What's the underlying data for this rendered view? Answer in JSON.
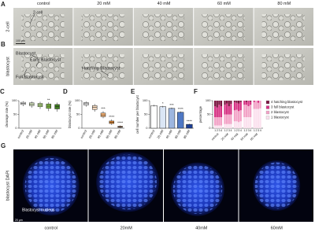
{
  "figure": {
    "A": {
      "label": "A",
      "row_label": "2-cell",
      "columns": [
        "control",
        "20 mM",
        "40 mM",
        "60 mM",
        "80 mM"
      ],
      "annotation": "2-cell",
      "scale_bar": "100 μm"
    },
    "B": {
      "label": "B",
      "row_label": "blastocyst",
      "annotations": [
        "Blastocyst",
        "Early Blastocyst",
        "Full Blastocyst",
        "Hatching Blastocyst"
      ]
    },
    "G": {
      "label": "G",
      "row_label": "blastocyst DAPI",
      "columns": [
        "control",
        "20mM",
        "40mM",
        "60mM"
      ],
      "annotation": "Blastocyst nucleus",
      "scale_bar": "20 μm"
    }
  },
  "chart_data": [
    {
      "type": "box",
      "label": "C",
      "ylabel": "cleavage rate (%)",
      "categories": [
        "control",
        "20 mM",
        "40 mM",
        "60 mM",
        "80 mM"
      ],
      "colors": [
        "#ffffff",
        "#dff0c8",
        "#b5dc86",
        "#7cb342",
        "#3e7d1e"
      ],
      "boxes": [
        {
          "min": 80,
          "q1": 86,
          "median": 90,
          "q3": 94,
          "max": 98
        },
        {
          "min": 74,
          "q1": 82,
          "median": 87,
          "q3": 92,
          "max": 97
        },
        {
          "min": 70,
          "q1": 78,
          "median": 84,
          "q3": 90,
          "max": 96
        },
        {
          "min": 62,
          "q1": 72,
          "median": 80,
          "q3": 88,
          "max": 94
        },
        {
          "min": 60,
          "q1": 70,
          "median": 78,
          "q3": 86,
          "max": 93
        }
      ],
      "significance": [
        null,
        null,
        null,
        "**",
        null
      ],
      "ylim": [
        0,
        100
      ],
      "yticks": [
        0,
        50,
        100
      ]
    },
    {
      "type": "box",
      "label": "D",
      "ylabel": "blastocyst rate (%)",
      "categories": [
        "control",
        "20 mM",
        "40 mM",
        "60 mM",
        "80 mM"
      ],
      "colors": [
        "#ffffff",
        "#fde0c4",
        "#f8b271",
        "#ee8a2b",
        "#c55a0e"
      ],
      "boxes": [
        {
          "min": 78,
          "q1": 84,
          "median": 89,
          "q3": 93,
          "max": 97
        },
        {
          "min": 60,
          "q1": 68,
          "median": 75,
          "q3": 82,
          "max": 88
        },
        {
          "min": 36,
          "q1": 42,
          "median": 48,
          "q3": 55,
          "max": 62
        },
        {
          "min": 12,
          "q1": 17,
          "median": 21,
          "q3": 26,
          "max": 32
        },
        {
          "min": 1,
          "q1": 3,
          "median": 5,
          "q3": 7,
          "max": 10
        }
      ],
      "significance": [
        null,
        null,
        "***",
        "****",
        "****"
      ],
      "ylim": [
        0,
        100
      ],
      "yticks": [
        0,
        50,
        100
      ]
    },
    {
      "type": "bar",
      "label": "E",
      "ylabel": "cell number per blastocyst",
      "categories": [
        "control",
        "20 mM",
        "40 mM",
        "60 mM",
        "80 mM"
      ],
      "values": [
        82,
        78,
        72,
        58,
        14
      ],
      "errors": [
        3,
        3,
        3,
        3,
        2
      ],
      "colors": [
        "#ffffff",
        "#dbe6f5",
        "#9db6e0",
        "#4f78c4",
        "#1c3f94"
      ],
      "significance": [
        null,
        "*",
        "***",
        "****",
        "****"
      ],
      "ylim": [
        0,
        100
      ],
      "yticks": [
        0,
        50,
        100
      ]
    },
    {
      "type": "stacked",
      "label": "F",
      "ylabel": "percentage",
      "categories": [
        "1",
        "2",
        "3",
        "4",
        "1",
        "2",
        "3",
        "4",
        "1",
        "2",
        "3",
        "4",
        "1",
        "2",
        "3",
        "4",
        "1",
        "2",
        "3",
        "4"
      ],
      "groups": [
        "control",
        "20 mM",
        "40 mM",
        "60 mM",
        "80 mM"
      ],
      "series": [
        {
          "name": "4 hatching blastocyst",
          "color": "#7a1540",
          "values": [
            20,
            25,
            15,
            20,
            15,
            10,
            20,
            12,
            5,
            8,
            10,
            5,
            0,
            5,
            0,
            3,
            0,
            0,
            0,
            0
          ]
        },
        {
          "name": "3 full blastocyst",
          "color": "#d63384",
          "values": [
            40,
            35,
            45,
            40,
            35,
            40,
            30,
            38,
            30,
            25,
            28,
            30,
            15,
            10,
            20,
            12,
            5,
            0,
            8,
            0
          ]
        },
        {
          "name": "2 blastocyst",
          "color": "#f2a2c6",
          "values": [
            30,
            30,
            30,
            30,
            35,
            35,
            35,
            35,
            40,
            42,
            40,
            40,
            45,
            45,
            40,
            45,
            25,
            30,
            22,
            28
          ]
        },
        {
          "name": "1 blastocyst",
          "color": "#fbe1ee",
          "values": [
            10,
            10,
            10,
            10,
            15,
            15,
            15,
            15,
            25,
            25,
            22,
            25,
            40,
            40,
            40,
            40,
            70,
            70,
            70,
            72
          ]
        }
      ],
      "ylim": [
        0,
        100
      ],
      "yticks": [
        0,
        50,
        100
      ]
    }
  ]
}
